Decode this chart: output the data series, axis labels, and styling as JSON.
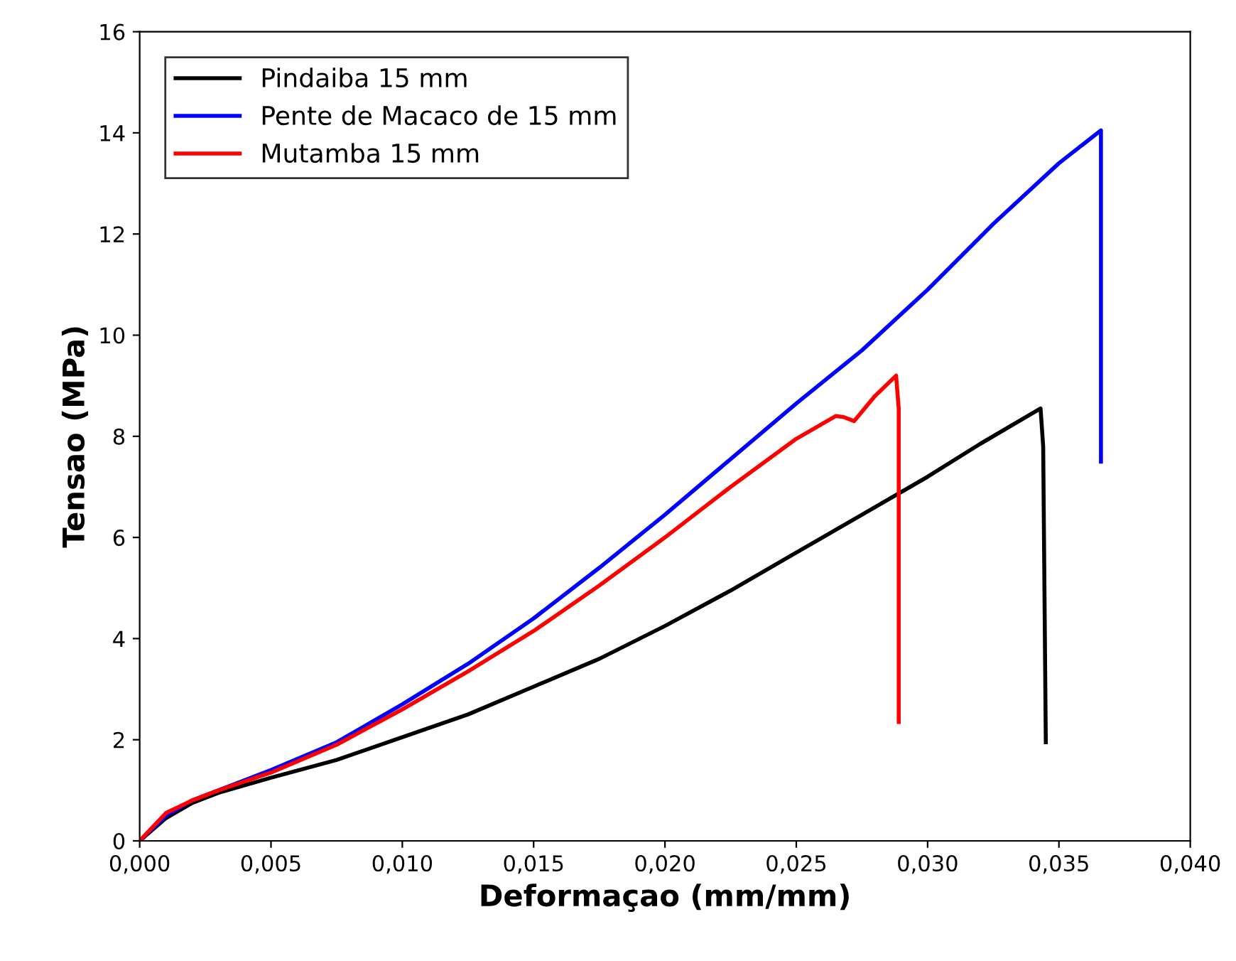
{
  "chart_data": {
    "type": "line",
    "xlabel": "Deformaçao (mm/mm)",
    "ylabel": "Tensao (MPa)",
    "xlim": [
      0,
      0.04
    ],
    "ylim": [
      0,
      16
    ],
    "xticks": [
      {
        "value": 0,
        "label": "0,000"
      },
      {
        "value": 0.005,
        "label": "0,005"
      },
      {
        "value": 0.01,
        "label": "0,010"
      },
      {
        "value": 0.015,
        "label": "0,015"
      },
      {
        "value": 0.02,
        "label": "0,020"
      },
      {
        "value": 0.025,
        "label": "0,025"
      },
      {
        "value": 0.03,
        "label": "0,030"
      },
      {
        "value": 0.035,
        "label": "0,035"
      },
      {
        "value": 0.04,
        "label": "0,040"
      }
    ],
    "yticks": [
      0,
      2,
      4,
      6,
      8,
      10,
      12,
      14,
      16
    ],
    "grid": false,
    "legend": "top left",
    "marker": "none",
    "line_style": "solid",
    "series": [
      {
        "name": "Pindaiba 15 mm",
        "color": "#000000",
        "x": [
          0,
          0.001,
          0.002,
          0.003,
          0.005,
          0.0075,
          0.01,
          0.0125,
          0.015,
          0.0175,
          0.02,
          0.0225,
          0.025,
          0.0275,
          0.03,
          0.032,
          0.0343,
          0.0344,
          0.0345
        ],
        "values": [
          0,
          0.45,
          0.75,
          0.95,
          1.25,
          1.6,
          2.05,
          2.5,
          3.05,
          3.6,
          4.25,
          4.95,
          5.7,
          6.45,
          7.2,
          7.85,
          8.55,
          7.8,
          1.95
        ]
      },
      {
        "name": "Pente de Macaco de 15 mm",
        "color": "#0000ff",
        "x": [
          0,
          0.001,
          0.002,
          0.003,
          0.005,
          0.0075,
          0.01,
          0.0125,
          0.015,
          0.0175,
          0.02,
          0.0225,
          0.025,
          0.0275,
          0.03,
          0.0325,
          0.035,
          0.0366,
          0.0366
        ],
        "values": [
          0,
          0.5,
          0.8,
          1.0,
          1.4,
          1.95,
          2.7,
          3.5,
          4.4,
          5.4,
          6.45,
          7.55,
          8.65,
          9.7,
          10.9,
          12.2,
          13.4,
          14.05,
          7.5
        ]
      },
      {
        "name": "Mutamba 15 mm",
        "color": "#ff0000",
        "x": [
          0,
          0.001,
          0.002,
          0.003,
          0.005,
          0.0075,
          0.01,
          0.0125,
          0.015,
          0.0175,
          0.02,
          0.0225,
          0.025,
          0.0265,
          0.0268,
          0.0272,
          0.028,
          0.0288,
          0.0289,
          0.0289
        ],
        "values": [
          0,
          0.55,
          0.8,
          1.0,
          1.35,
          1.9,
          2.6,
          3.35,
          4.15,
          5.05,
          6.0,
          7.0,
          7.95,
          8.4,
          8.38,
          8.3,
          8.8,
          9.2,
          8.55,
          2.35
        ]
      }
    ]
  }
}
